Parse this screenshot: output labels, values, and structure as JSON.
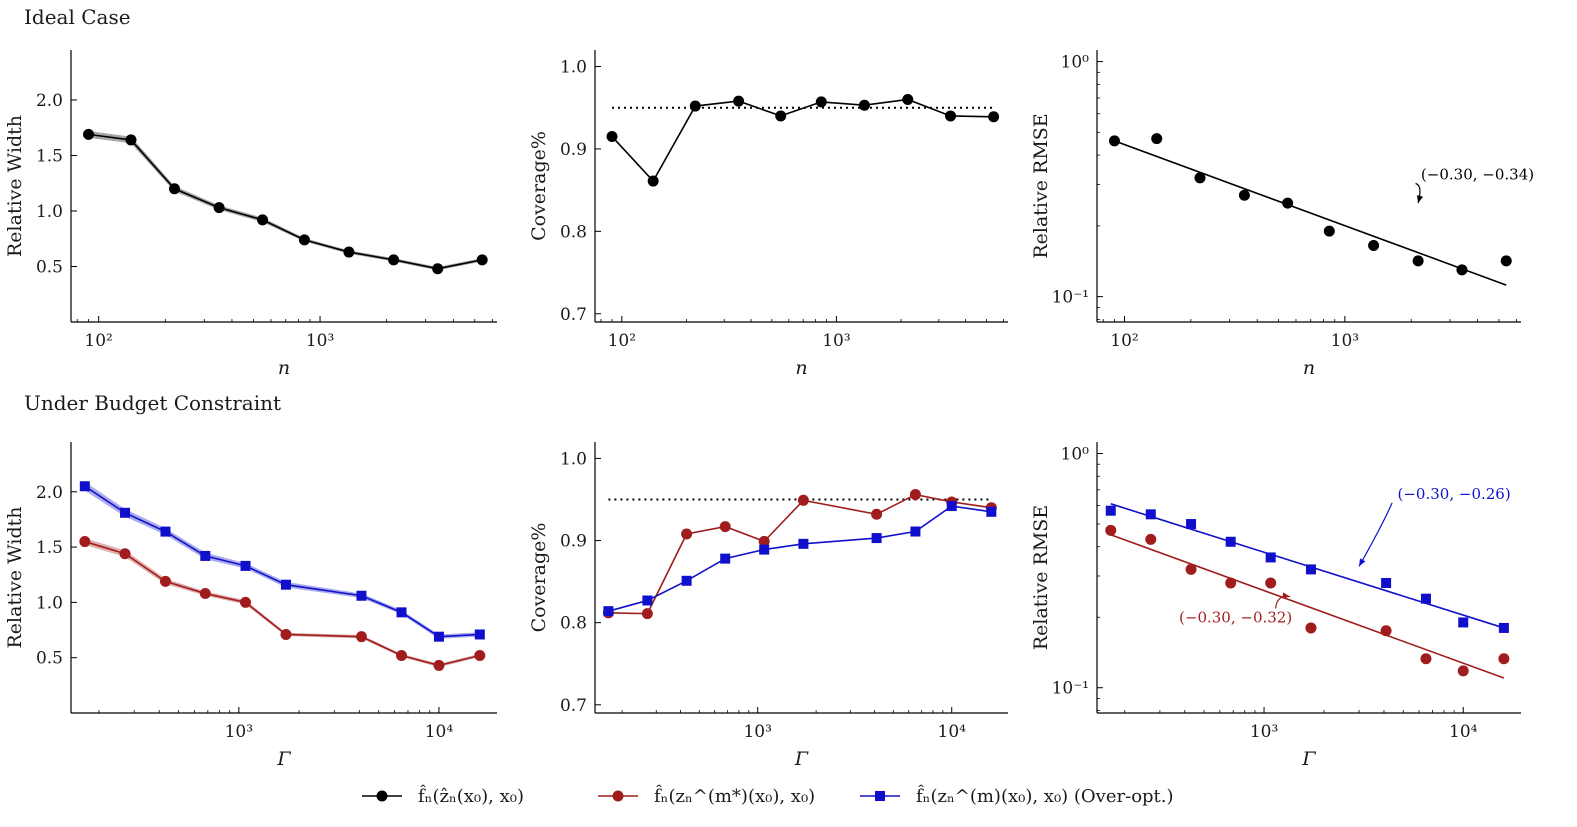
{
  "sections": {
    "top_title": "Ideal Case",
    "bottom_title": "Under Budget Constraint"
  },
  "colors": {
    "black_series": "#000000",
    "red_series": "#a11d1d",
    "blue_series": "#1010cc",
    "target_line": "#000000"
  },
  "legend": {
    "items": [
      {
        "marker": "circle",
        "color": "#000000",
        "label": "f̂ₙ(ẑₙ(x₀), x₀)"
      },
      {
        "marker": "circle",
        "color": "#a11d1d",
        "label": "f̂ₙ(zₙ^(m*)(x₀), x₀)"
      },
      {
        "marker": "square",
        "color": "#1010cc",
        "label": "f̂ₙ(zₙ^(m)(x₀), x₀) (Over-opt.)"
      }
    ]
  },
  "chart_data": [
    {
      "id": "top-width",
      "type": "line",
      "section": "Ideal Case",
      "xlabel": "n",
      "ylabel": "Relative Width",
      "xscale": "log",
      "xlim": [
        75,
        6300
      ],
      "ylim": [
        0.0,
        2.45
      ],
      "xticks": [
        100,
        1000
      ],
      "xtick_labels": [
        "10²",
        "10³"
      ],
      "yticks": [
        0.5,
        1.0,
        1.5,
        2.0
      ],
      "ytick_labels": [
        "0.5",
        "1.0",
        "1.5",
        "2.0"
      ],
      "band": true,
      "series": [
        {
          "name": "f̂ₙ(ẑₙ(x₀), x₀)",
          "color": "#000000",
          "marker": "circle",
          "x": [
            90,
            140,
            220,
            350,
            550,
            850,
            1350,
            2150,
            3400,
            5400
          ],
          "y": [
            1.69,
            1.64,
            1.2,
            1.03,
            0.92,
            0.74,
            0.63,
            0.56,
            0.48,
            0.56
          ],
          "band_halfwidth": [
            0.03,
            0.03,
            0.025,
            0.02,
            0.02,
            0.015,
            0.015,
            0.015,
            0.015,
            0.015
          ]
        }
      ]
    },
    {
      "id": "top-coverage",
      "type": "line",
      "section": "Ideal Case",
      "xlabel": "n",
      "ylabel": "Coverage%",
      "xscale": "log",
      "xlim": [
        75,
        6300
      ],
      "ylim": [
        0.69,
        1.02
      ],
      "xticks": [
        100,
        1000
      ],
      "xtick_labels": [
        "10²",
        "10³"
      ],
      "yticks": [
        0.7,
        0.8,
        0.9,
        1.0
      ],
      "ytick_labels": [
        "0.7",
        "0.8",
        "0.9",
        "1.0"
      ],
      "hline": {
        "y": 0.95,
        "style": "dotted",
        "x_from": 90,
        "x_to": 5400
      },
      "series": [
        {
          "name": "f̂ₙ(ẑₙ(x₀), x₀)",
          "color": "#000000",
          "marker": "circle",
          "x": [
            90,
            140,
            220,
            350,
            550,
            850,
            1350,
            2150,
            3400,
            5400
          ],
          "y": [
            0.915,
            0.861,
            0.952,
            0.958,
            0.94,
            0.957,
            0.953,
            0.96,
            0.94,
            0.939
          ]
        }
      ]
    },
    {
      "id": "top-rmse",
      "type": "scatter",
      "section": "Ideal Case",
      "xlabel": "n",
      "ylabel": "Relative RMSE",
      "xscale": "log",
      "yscale": "log",
      "xlim": [
        75,
        6300
      ],
      "ylim": [
        0.078,
        1.12
      ],
      "xticks": [
        100,
        1000
      ],
      "xtick_labels": [
        "10²",
        "10³"
      ],
      "yticks": [
        0.1,
        1.0
      ],
      "ytick_labels": [
        "10⁻¹",
        "10⁰"
      ],
      "series": [
        {
          "name": "f̂ₙ(ẑₙ(x₀), x₀)",
          "color": "#000000",
          "marker": "circle",
          "x": [
            90,
            140,
            220,
            350,
            550,
            850,
            1350,
            2150,
            3400,
            5400
          ],
          "y": [
            0.46,
            0.47,
            0.32,
            0.27,
            0.25,
            0.19,
            0.165,
            0.142,
            0.13,
            0.142
          ],
          "fit": {
            "x0": 90,
            "y0": 0.46,
            "x1": 5400,
            "y1": 0.112
          }
        }
      ],
      "annotations": [
        {
          "text": "(−0.30, −0.34)",
          "color": "#000000",
          "x": 4000,
          "y": 0.315,
          "arrow_to_x": 2150,
          "arrow_to_y": 0.25
        }
      ]
    },
    {
      "id": "bottom-width",
      "type": "line",
      "section": "Under Budget Constraint",
      "xlabel": "Γ",
      "ylabel": "Relative Width",
      "xscale": "log",
      "xlim": [
        145,
        19500
      ],
      "ylim": [
        0.0,
        2.45
      ],
      "xticks": [
        1000,
        10000
      ],
      "xtick_labels": [
        "10³",
        "10⁴"
      ],
      "yticks": [
        0.5,
        1.0,
        1.5,
        2.0
      ],
      "ytick_labels": [
        "0.5",
        "1.0",
        "1.5",
        "2.0"
      ],
      "band": true,
      "series": [
        {
          "name": "f̂ₙ(zₙ^(m)(x₀), x₀) (Over-opt.)",
          "color": "#1010cc",
          "marker": "square",
          "x": [
            170,
            270,
            430,
            680,
            1080,
            1720,
            4100,
            6500,
            10000,
            16000
          ],
          "y": [
            2.05,
            1.81,
            1.64,
            1.42,
            1.33,
            1.16,
            1.06,
            0.91,
            0.69,
            0.71
          ],
          "band_halfwidth": [
            0.04,
            0.035,
            0.03,
            0.03,
            0.025,
            0.025,
            0.02,
            0.02,
            0.02,
            0.02
          ]
        },
        {
          "name": "f̂ₙ(zₙ^(m*)(x₀), x₀)",
          "color": "#a11d1d",
          "marker": "circle",
          "x": [
            170,
            270,
            430,
            680,
            1080,
            1720,
            4100,
            6500,
            10000,
            16000
          ],
          "y": [
            1.55,
            1.44,
            1.19,
            1.08,
            1.0,
            0.71,
            0.69,
            0.52,
            0.43,
            0.52
          ],
          "band_halfwidth": [
            0.03,
            0.03,
            0.025,
            0.02,
            0.02,
            0.015,
            0.015,
            0.015,
            0.015,
            0.015
          ]
        }
      ]
    },
    {
      "id": "bottom-coverage",
      "type": "line",
      "section": "Under Budget Constraint",
      "xlabel": "Γ",
      "ylabel": "Coverage%",
      "xscale": "log",
      "xlim": [
        145,
        19500
      ],
      "ylim": [
        0.69,
        1.02
      ],
      "xticks": [
        1000,
        10000
      ],
      "xtick_labels": [
        "10³",
        "10⁴"
      ],
      "yticks": [
        0.7,
        0.8,
        0.9,
        1.0
      ],
      "ytick_labels": [
        "0.7",
        "0.8",
        "0.9",
        "1.0"
      ],
      "hline": {
        "y": 0.95,
        "style": "dotted",
        "x_from": 170,
        "x_to": 16000
      },
      "series": [
        {
          "name": "f̂ₙ(zₙ^(m*)(x₀), x₀)",
          "color": "#a11d1d",
          "marker": "circle",
          "x": [
            170,
            270,
            430,
            680,
            1080,
            1720,
            4100,
            6500,
            10000,
            16000
          ],
          "y": [
            0.812,
            0.811,
            0.908,
            0.917,
            0.899,
            0.949,
            0.932,
            0.956,
            0.947,
            0.94
          ]
        },
        {
          "name": "f̂ₙ(zₙ^(m)(x₀), x₀) (Over-opt.)",
          "color": "#1010cc",
          "marker": "square",
          "x": [
            170,
            270,
            430,
            680,
            1080,
            1720,
            4100,
            6500,
            10000,
            16000
          ],
          "y": [
            0.814,
            0.827,
            0.851,
            0.878,
            0.889,
            0.896,
            0.903,
            0.911,
            0.942,
            0.935
          ]
        }
      ]
    },
    {
      "id": "bottom-rmse",
      "type": "scatter",
      "section": "Under Budget Constraint",
      "xlabel": "Γ",
      "ylabel": "Relative RMSE",
      "xscale": "log",
      "yscale": "log",
      "xlim": [
        145,
        19500
      ],
      "ylim": [
        0.078,
        1.12
      ],
      "xticks": [
        1000,
        10000
      ],
      "xtick_labels": [
        "10³",
        "10⁴"
      ],
      "yticks": [
        0.1,
        1.0
      ],
      "ytick_labels": [
        "10⁻¹",
        "10⁰"
      ],
      "series": [
        {
          "name": "f̂ₙ(zₙ^(m)(x₀), x₀) (Over-opt.)",
          "color": "#1010cc",
          "marker": "square",
          "x": [
            170,
            270,
            430,
            680,
            1080,
            1720,
            4100,
            6500,
            10000,
            16000
          ],
          "y": [
            0.57,
            0.55,
            0.5,
            0.42,
            0.36,
            0.32,
            0.28,
            0.24,
            0.19,
            0.18
          ],
          "fit": {
            "x0": 170,
            "y0": 0.61,
            "x1": 16000,
            "y1": 0.18
          }
        },
        {
          "name": "f̂ₙ(zₙ^(m*)(x₀), x₀)",
          "color": "#a11d1d",
          "marker": "circle",
          "x": [
            170,
            270,
            430,
            680,
            1080,
            1720,
            4100,
            6500,
            10000,
            16000
          ],
          "y": [
            0.47,
            0.43,
            0.32,
            0.28,
            0.28,
            0.18,
            0.175,
            0.133,
            0.118,
            0.133
          ],
          "fit": {
            "x0": 170,
            "y0": 0.45,
            "x1": 16000,
            "y1": 0.11
          }
        }
      ],
      "annotations": [
        {
          "text": "(−0.30, −0.26)",
          "color": "#1010cc",
          "x": 9000,
          "y": 0.64,
          "arrow_to_x": 3000,
          "arrow_to_y": 0.33
        },
        {
          "text": "(−0.30, −0.32)",
          "color": "#a11d1d",
          "x": 720,
          "y": 0.19,
          "arrow_to_x": 1350,
          "arrow_to_y": 0.245
        }
      ]
    }
  ]
}
